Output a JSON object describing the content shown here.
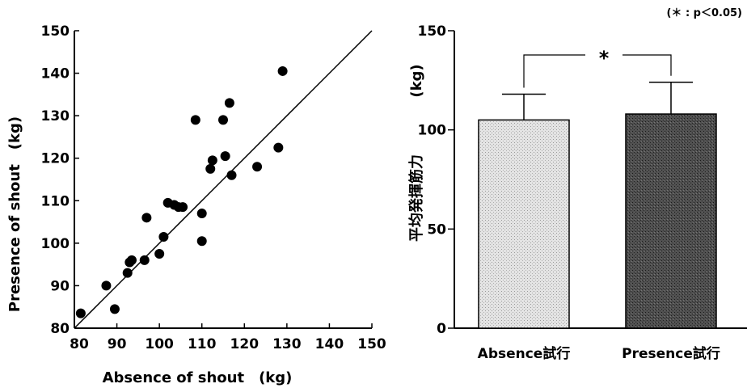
{
  "chart_data": [
    {
      "type": "scatter",
      "title": "",
      "xlabel": "Absence of shout　(kg)",
      "ylabel": "Presence of shout　(kg)",
      "xlim": [
        80,
        150
      ],
      "ylim": [
        80,
        150
      ],
      "x_ticks": [
        "80",
        "90",
        "100",
        "110",
        "120",
        "130",
        "140",
        "150"
      ],
      "y_ticks": [
        "80",
        "90",
        "100",
        "110",
        "120",
        "130",
        "140",
        "150"
      ],
      "identity_line": true,
      "points": [
        {
          "x": 81.5,
          "y": 83.5
        },
        {
          "x": 87.5,
          "y": 90
        },
        {
          "x": 89.5,
          "y": 84.5
        },
        {
          "x": 92.5,
          "y": 93
        },
        {
          "x": 93,
          "y": 95.5
        },
        {
          "x": 93.5,
          "y": 96
        },
        {
          "x": 96.5,
          "y": 96
        },
        {
          "x": 97,
          "y": 106
        },
        {
          "x": 100,
          "y": 97.5
        },
        {
          "x": 101,
          "y": 101.5
        },
        {
          "x": 102,
          "y": 109.5
        },
        {
          "x": 103.5,
          "y": 109
        },
        {
          "x": 104.5,
          "y": 108.5
        },
        {
          "x": 105.5,
          "y": 108.5
        },
        {
          "x": 108.5,
          "y": 129
        },
        {
          "x": 110,
          "y": 107
        },
        {
          "x": 110,
          "y": 100.5
        },
        {
          "x": 112,
          "y": 117.5
        },
        {
          "x": 112.5,
          "y": 119.5
        },
        {
          "x": 115,
          "y": 129
        },
        {
          "x": 115.5,
          "y": 120.5
        },
        {
          "x": 116.5,
          "y": 133
        },
        {
          "x": 117,
          "y": 116
        },
        {
          "x": 123,
          "y": 118
        },
        {
          "x": 128,
          "y": 122.5
        },
        {
          "x": 129,
          "y": 140.5
        }
      ]
    },
    {
      "type": "bar",
      "title": "",
      "xlabel": "",
      "ylabel": "平均発揮筋力",
      "yunit": "(kg)",
      "ylim": [
        0,
        150
      ],
      "y_ticks": [
        "0",
        "50",
        "100",
        "150"
      ],
      "categories": [
        "Absence試行",
        "Presence試行"
      ],
      "values": [
        105,
        108
      ],
      "errors": [
        13,
        16
      ],
      "colors": [
        "#d8d8d8",
        "#4a4a4a"
      ],
      "significance": {
        "marker": "*",
        "note": "(＊ : p＜0.05)"
      }
    }
  ]
}
